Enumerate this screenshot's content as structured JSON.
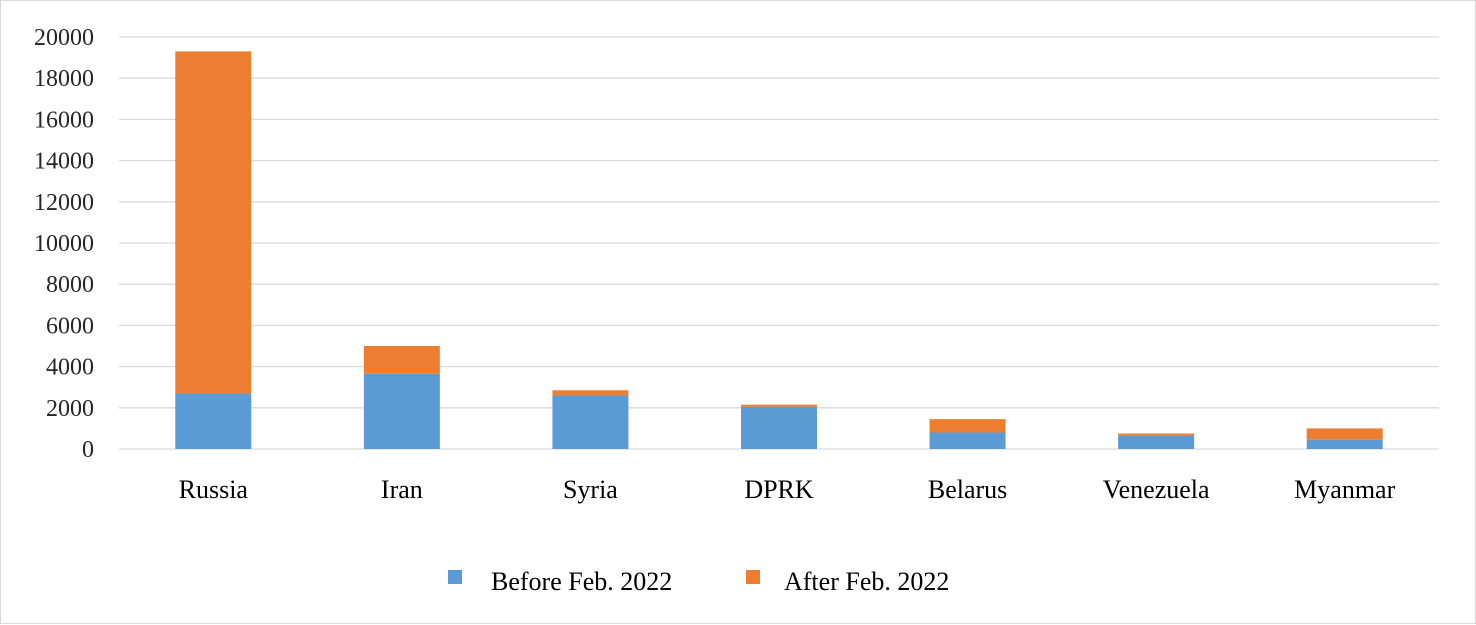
{
  "chart_data": {
    "type": "bar",
    "stacked": true,
    "title": "",
    "xlabel": "",
    "ylabel": "",
    "categories": [
      "Russia",
      "Iran",
      "Syria",
      "DPRK",
      "Belarus",
      "Venezuela",
      "Myanmar"
    ],
    "series": [
      {
        "name": "Before Feb. 2022",
        "color": "#5b9bd5",
        "values": [
          2700,
          3650,
          2600,
          2050,
          800,
          650,
          450
        ]
      },
      {
        "name": "After Feb. 2022",
        "color": "#ed7d31",
        "values": [
          16600,
          1350,
          250,
          100,
          650,
          100,
          550
        ]
      }
    ],
    "y_ticks": [
      "0",
      "2000",
      "4000",
      "6000",
      "8000",
      "10000",
      "12000",
      "14000",
      "16000",
      "18000",
      "20000"
    ],
    "ylim": [
      0,
      20000
    ],
    "grid": true,
    "legend_position": "bottom"
  }
}
